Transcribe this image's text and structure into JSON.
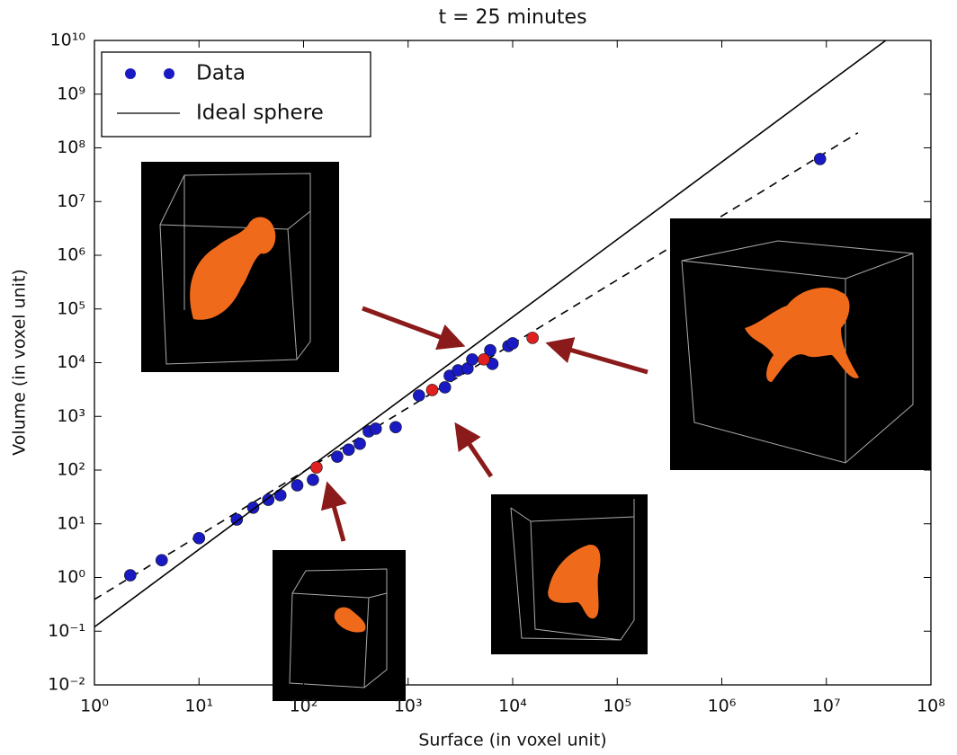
{
  "chart_data": {
    "type": "scatter",
    "title": "t = 25 minutes",
    "x_label": "Surface (in voxel unit)",
    "y_label": "Volume (in voxel unit)",
    "xscale": "log",
    "yscale": "log",
    "xlim": [
      1,
      100000000
    ],
    "ylim": [
      0.01,
      10000000000
    ],
    "xticks": [
      {
        "value": 1,
        "label": "10⁰"
      },
      {
        "value": 10,
        "label": "10¹"
      },
      {
        "value": 100,
        "label": "10²"
      },
      {
        "value": 1000,
        "label": "10³"
      },
      {
        "value": 10000,
        "label": "10⁴"
      },
      {
        "value": 100000,
        "label": "10⁵"
      },
      {
        "value": 1000000,
        "label": "10⁶"
      },
      {
        "value": 10000000,
        "label": "10⁷"
      },
      {
        "value": 100000000,
        "label": "10⁸"
      }
    ],
    "yticks": [
      {
        "value": 0.01,
        "label": "10⁻²"
      },
      {
        "value": 0.1,
        "label": "10⁻¹"
      },
      {
        "value": 1,
        "label": "10⁰"
      },
      {
        "value": 10,
        "label": "10¹"
      },
      {
        "value": 100,
        "label": "10²"
      },
      {
        "value": 1000,
        "label": "10³"
      },
      {
        "value": 10000,
        "label": "10⁴"
      },
      {
        "value": 100000,
        "label": "10⁵"
      },
      {
        "value": 1000000,
        "label": "10⁶"
      },
      {
        "value": 10000000,
        "label": "10⁷"
      },
      {
        "value": 100000000,
        "label": "10⁸"
      },
      {
        "value": 1000000000,
        "label": "10⁹"
      },
      {
        "value": 10000000000,
        "label": "10¹⁰"
      }
    ],
    "legend": "upper left",
    "series": [
      {
        "name": "Data",
        "type": "scatter",
        "color": "#1a1ac4",
        "x": [
          2.2,
          4.4,
          10,
          23,
          33,
          46,
          60,
          87,
          123,
          210,
          270,
          345,
          420,
          490,
          760,
          1270,
          2250,
          2500,
          3000,
          3700,
          4100,
          6100,
          6400,
          9100,
          10000,
          8700000
        ],
        "values": [
          1.1,
          2.1,
          5.4,
          12,
          20,
          28,
          34,
          52,
          66,
          178,
          240,
          309,
          525,
          590,
          630,
          2450,
          3470,
          5700,
          7200,
          7800,
          11500,
          17000,
          9500,
          20400,
          23000,
          62000000
        ]
      },
      {
        "name": "Ideal sphere",
        "type": "line",
        "color": "#000000",
        "x": [
          1,
          37000000
        ],
        "values": [
          0.12,
          10000000000
        ]
      }
    ],
    "highlighted": {
      "color": "#e02020",
      "x": [
        133,
        1700,
        5300,
        15500
      ],
      "values": [
        112,
        3100,
        11500,
        29000
      ]
    },
    "fit_line": {
      "color": "#000000",
      "style": "dashed",
      "x": [
        1,
        20000000
      ],
      "values": [
        0.39,
        190000000
      ]
    }
  }
}
